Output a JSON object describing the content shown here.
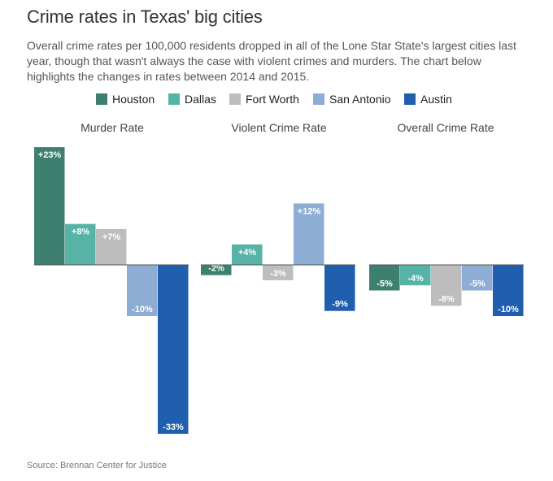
{
  "title": "Crime rates in Texas' big cities",
  "description": "Overall crime rates per 100,000 residents dropped in all of the Lone Star State's largest cities last year, though that wasn't always the case with violent crimes and murders. The chart below highlights the changes in rates between 2014 and 2015.",
  "source": "Source: Brennan Center for Justice",
  "legend": [
    {
      "name": "Houston",
      "color": "#3e8070"
    },
    {
      "name": "Dallas",
      "color": "#56b3a6"
    },
    {
      "name": "Fort Worth",
      "color": "#bdbdbd"
    },
    {
      "name": "San Antonio",
      "color": "#8eadd4"
    },
    {
      "name": "Austin",
      "color": "#1f5fae"
    }
  ],
  "chart_data": {
    "type": "bar",
    "categories": [
      "Houston",
      "Dallas",
      "Fort Worth",
      "San Antonio",
      "Austin"
    ],
    "panels": [
      {
        "title": "Murder Rate",
        "values": [
          23,
          8,
          7,
          -10,
          -33
        ],
        "labels": [
          "+23%",
          "+8%",
          "+7%",
          "-10%",
          "-33%"
        ]
      },
      {
        "title": "Violent Crime Rate",
        "values": [
          -2,
          4,
          -3,
          12,
          -9
        ],
        "labels": [
          "-2%",
          "+4%",
          "-3%",
          "+12%",
          "-9%"
        ]
      },
      {
        "title": "Overall Crime Rate",
        "values": [
          -5,
          -4,
          -8,
          -5,
          -10
        ],
        "labels": [
          "-5%",
          "-4%",
          "-8%",
          "-5%",
          "-10%"
        ]
      }
    ],
    "colors": [
      "#3e8070",
      "#56b3a6",
      "#bdbdbd",
      "#8eadd4",
      "#1f5fae"
    ],
    "label_colors": [
      "#ffffff",
      "#ffffff",
      "#ffffff",
      "#ffffff",
      "#ffffff"
    ],
    "ylim": [
      -33,
      23
    ],
    "grid": false
  }
}
